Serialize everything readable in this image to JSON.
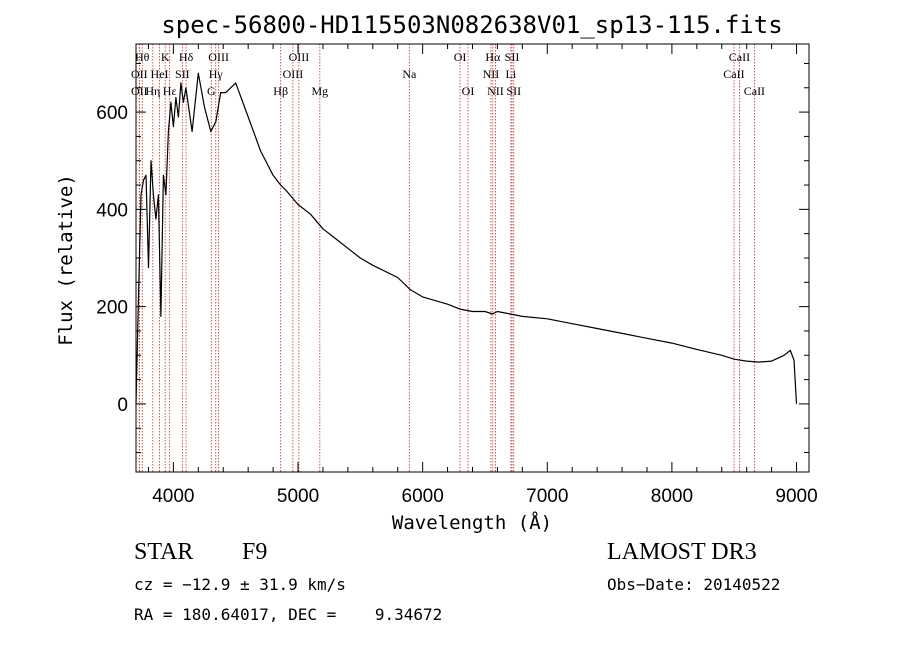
{
  "chart_data": {
    "type": "line",
    "title": "spec-56800-HD115503N082638V01_sp13-115.fits",
    "xlabel": "Wavelength (Å)",
    "ylabel": "Flux (relative)",
    "xlim": [
      3700,
      9100
    ],
    "ylim": [
      -140,
      740
    ],
    "xticks": [
      4000,
      5000,
      6000,
      7000,
      8000,
      9000
    ],
    "yticks": [
      0,
      200,
      400,
      600
    ],
    "x_minor_step": 200,
    "y_minor_step": 50,
    "line_color": "#000000",
    "marker_color": "#c03030",
    "series": [
      {
        "name": "flux",
        "x": [
          3700,
          3720,
          3740,
          3760,
          3780,
          3800,
          3820,
          3840,
          3860,
          3880,
          3900,
          3920,
          3940,
          3960,
          3980,
          4000,
          4020,
          4040,
          4060,
          4080,
          4100,
          4150,
          4200,
          4250,
          4300,
          4340,
          4380,
          4420,
          4460,
          4500,
          4600,
          4700,
          4800,
          4860,
          4900,
          5000,
          5100,
          5200,
          5300,
          5400,
          5500,
          5600,
          5800,
          5900,
          6000,
          6200,
          6300,
          6400,
          6500,
          6560,
          6600,
          6700,
          6800,
          7000,
          7200,
          7400,
          7600,
          7800,
          8000,
          8200,
          8400,
          8500,
          8600,
          8700,
          8800,
          8900,
          8950,
          8980,
          9000
        ],
        "y": [
          0,
          220,
          430,
          460,
          470,
          280,
          500,
          430,
          380,
          430,
          180,
          470,
          430,
          560,
          620,
          570,
          630,
          590,
          660,
          620,
          650,
          560,
          680,
          610,
          560,
          580,
          640,
          640,
          650,
          660,
          590,
          520,
          470,
          450,
          440,
          410,
          390,
          360,
          340,
          320,
          300,
          285,
          260,
          235,
          220,
          205,
          195,
          190,
          190,
          185,
          190,
          185,
          180,
          175,
          165,
          155,
          145,
          135,
          125,
          112,
          100,
          92,
          88,
          86,
          88,
          100,
          110,
          90,
          0
        ]
      }
    ],
    "emission_lines": [
      {
        "label": "OII",
        "x": 3727,
        "row": 2
      },
      {
        "label": "Hθ",
        "x": 3750,
        "row": 1
      },
      {
        "label": "OII",
        "x": 3727,
        "row": 3
      },
      {
        "label": "Hη",
        "x": 3835,
        "row": 3
      },
      {
        "label": "HeI",
        "x": 3889,
        "row": 2
      },
      {
        "label": "K",
        "x": 3934,
        "row": 1
      },
      {
        "label": "Hε",
        "x": 3970,
        "row": 3
      },
      {
        "label": "SII",
        "x": 4072,
        "row": 2
      },
      {
        "label": "Hδ",
        "x": 4102,
        "row": 1
      },
      {
        "label": "G",
        "x": 4304,
        "row": 3
      },
      {
        "label": "Hγ",
        "x": 4340,
        "row": 2
      },
      {
        "label": "OIII",
        "x": 4363,
        "row": 1
      },
      {
        "label": "Hβ",
        "x": 4861,
        "row": 3
      },
      {
        "label": "OIII",
        "x": 4959,
        "row": 2
      },
      {
        "label": "OIII",
        "x": 5007,
        "row": 1
      },
      {
        "label": "Mg",
        "x": 5175,
        "row": 3
      },
      {
        "label": "Na",
        "x": 5893,
        "row": 2
      },
      {
        "label": "OI",
        "x": 6300,
        "row": 1
      },
      {
        "label": "OI",
        "x": 6364,
        "row": 3
      },
      {
        "label": "NII",
        "x": 6548,
        "row": 2
      },
      {
        "label": "Hα",
        "x": 6563,
        "row": 1
      },
      {
        "label": "NII",
        "x": 6584,
        "row": 3
      },
      {
        "label": "Li",
        "x": 6708,
        "row": 2
      },
      {
        "label": "SII",
        "x": 6717,
        "row": 1
      },
      {
        "label": "SII",
        "x": 6731,
        "row": 3
      },
      {
        "label": "CaII",
        "x": 8498,
        "row": 2
      },
      {
        "label": "CaII",
        "x": 8542,
        "row": 1
      },
      {
        "label": "CaII",
        "x": 8662,
        "row": 3
      }
    ]
  },
  "info": {
    "object_type": "STAR",
    "subclass": "F9",
    "survey": "LAMOST DR3",
    "cz": "cz = −12.9 ± 31.9 km/s",
    "obs_date": "Obs−Date: 20140522",
    "coords": "RA = 180.64017, DEC =    9.34672"
  }
}
